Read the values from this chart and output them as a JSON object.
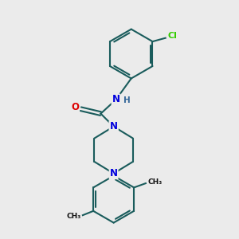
{
  "bg_color": "#ebebeb",
  "bond_color": "#1a5c5c",
  "bond_width": 1.5,
  "atom_colors": {
    "N": "#0000dd",
    "O": "#dd0000",
    "Cl": "#33cc00",
    "H": "#336699"
  },
  "font_size": 8.5,
  "fig_size": [
    3.0,
    3.0
  ],
  "dpi": 100
}
